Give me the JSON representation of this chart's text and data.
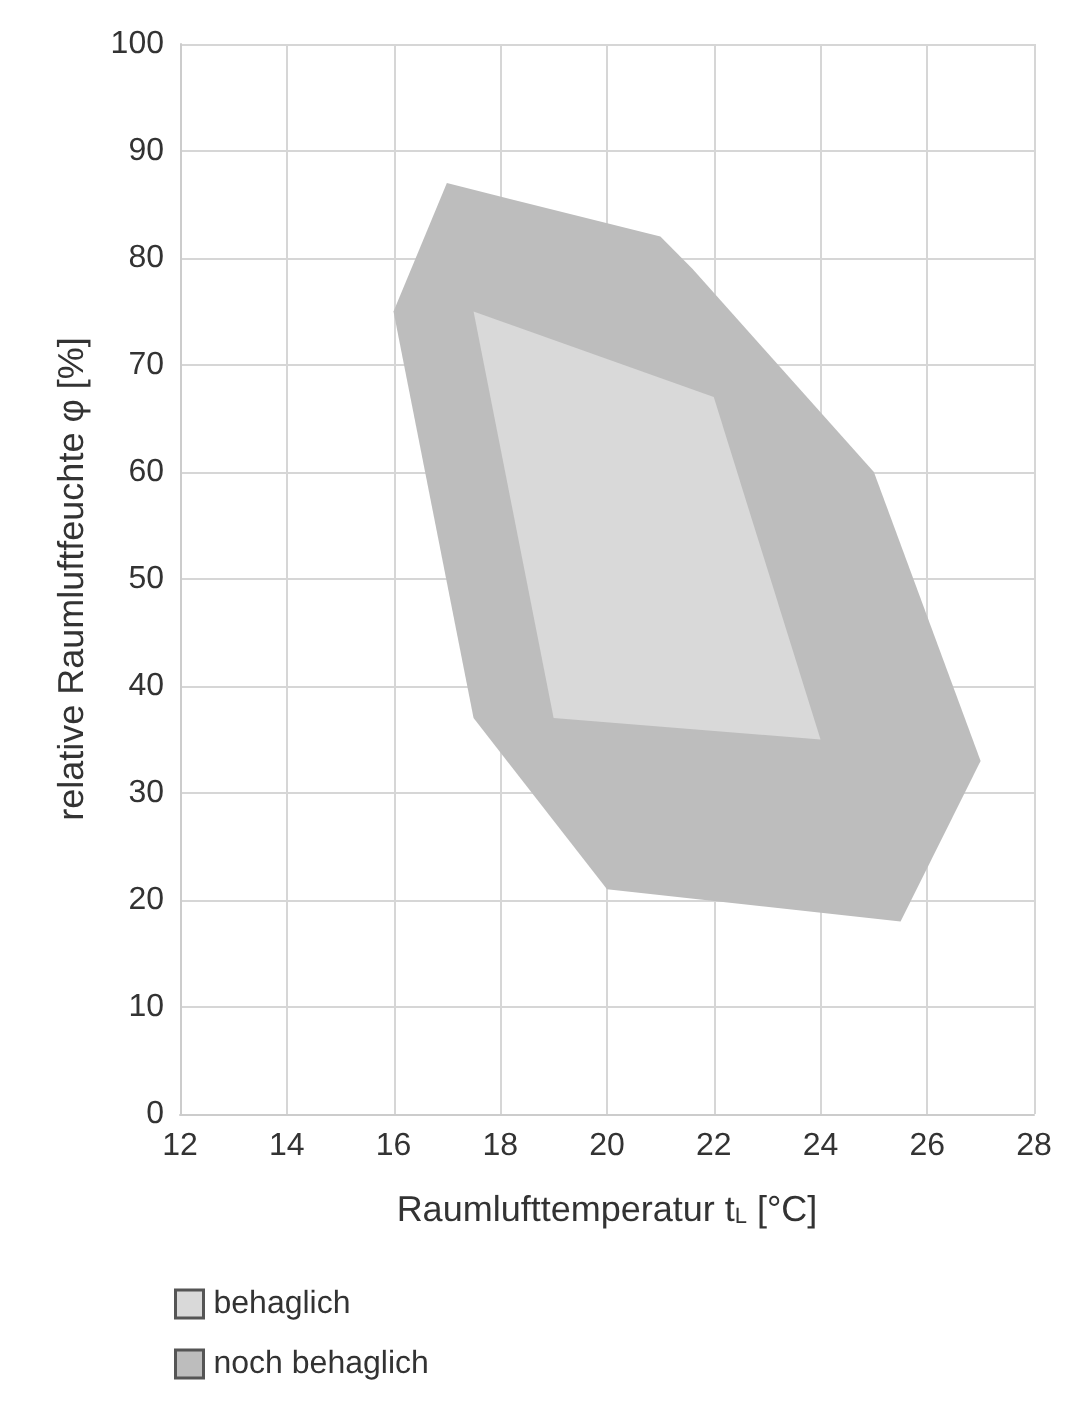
{
  "chart_data": {
    "type": "area",
    "xlabel": "Raumlufttemperatur t$_{L}$ [°C]",
    "ylabel": "relative Raumluftfeuchte φ [%]",
    "xlim": [
      12,
      28
    ],
    "xticks": [
      12,
      14,
      16,
      18,
      20,
      22,
      24,
      26,
      28
    ],
    "ylim": [
      0,
      100
    ],
    "yticks": [
      0,
      10,
      20,
      30,
      40,
      50,
      60,
      70,
      80,
      90,
      100
    ],
    "grid": true,
    "legend": "bottom left",
    "series": [
      {
        "name": "behaglich",
        "color": "#d9d9d9",
        "x": [
          17.5,
          22,
          24,
          19
        ],
        "values": [
          75,
          67,
          35,
          37
        ]
      },
      {
        "name": "noch behaglich",
        "color": "#bdbdbd",
        "x": [
          17,
          21,
          21.6,
          25,
          27,
          25.5,
          20,
          17.5,
          16
        ],
        "values": [
          87,
          82,
          79,
          60,
          33,
          18,
          21,
          37,
          75
        ]
      }
    ]
  }
}
